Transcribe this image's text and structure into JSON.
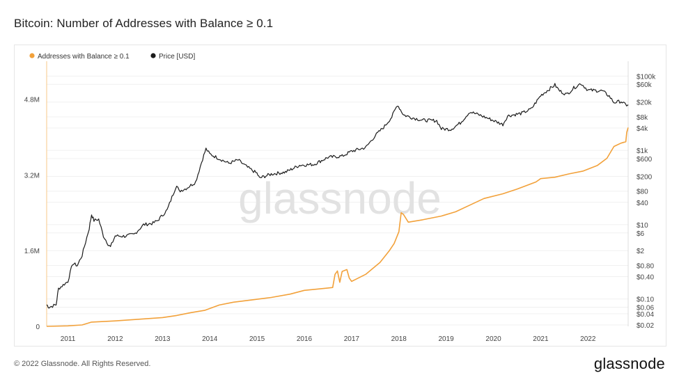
{
  "title": "Bitcoin: Number of Addresses with Balance ≥ 0.1",
  "footer": "© 2022 Glassnode. All Rights Reserved.",
  "brand": "glassnode",
  "watermark": "glassnode",
  "colors": {
    "addresses": "#f2a13a",
    "price": "#1b1b1b",
    "watermark": "#e2e2e2"
  },
  "chart_data": {
    "type": "line",
    "title": "Bitcoin: Number of Addresses with Balance ≥ 0.1",
    "legend_position": "top-left",
    "x": {
      "range": [
        2010.55,
        2022.85
      ],
      "tick_labels": [
        "2011",
        "2012",
        "2013",
        "2014",
        "2015",
        "2016",
        "2017",
        "2018",
        "2019",
        "2020",
        "2021",
        "2022"
      ]
    },
    "y_left": {
      "range": [
        0,
        5600000
      ],
      "ticks": [
        0,
        1600000,
        3200000,
        4800000
      ],
      "tick_labels": [
        "0",
        "1.6M",
        "3.2M",
        "4.8M"
      ]
    },
    "y_right": {
      "scale": "log",
      "range": [
        0.02,
        150000
      ],
      "ticks": [
        0.02,
        0.04,
        0.06,
        0.1,
        0.4,
        0.8,
        2,
        6,
        10,
        40,
        80,
        200,
        600,
        1000,
        4000,
        8000,
        20000,
        60000,
        100000
      ],
      "tick_labels": [
        "$0.02",
        "$0.04",
        "$0.06",
        "$0.10",
        "$0.40",
        "$0.80",
        "$2",
        "$6",
        "$10",
        "$40",
        "$80",
        "$200",
        "$600",
        "$1k",
        "$4k",
        "$8k",
        "$20k",
        "$60k",
        "$100k"
      ]
    },
    "series": [
      {
        "name": "Addresses with Balance ≥ 0.1",
        "axis": "left",
        "points": [
          [
            2010.55,
            0
          ],
          [
            2011.0,
            10000
          ],
          [
            2011.3,
            30000
          ],
          [
            2011.5,
            90000
          ],
          [
            2012.0,
            115000
          ],
          [
            2012.5,
            150000
          ],
          [
            2013.0,
            185000
          ],
          [
            2013.3,
            230000
          ],
          [
            2013.6,
            290000
          ],
          [
            2013.9,
            340000
          ],
          [
            2014.2,
            450000
          ],
          [
            2014.5,
            510000
          ],
          [
            2014.9,
            560000
          ],
          [
            2015.3,
            610000
          ],
          [
            2015.7,
            680000
          ],
          [
            2016.0,
            760000
          ],
          [
            2016.3,
            790000
          ],
          [
            2016.5,
            810000
          ],
          [
            2016.6,
            820000
          ],
          [
            2016.65,
            1100000
          ],
          [
            2016.7,
            1170000
          ],
          [
            2016.75,
            930000
          ],
          [
            2016.8,
            1160000
          ],
          [
            2016.9,
            1200000
          ],
          [
            2016.95,
            1020000
          ],
          [
            2017.0,
            950000
          ],
          [
            2017.3,
            1100000
          ],
          [
            2017.6,
            1350000
          ],
          [
            2017.8,
            1600000
          ],
          [
            2017.9,
            1750000
          ],
          [
            2018.0,
            2000000
          ],
          [
            2018.05,
            2400000
          ],
          [
            2018.1,
            2360000
          ],
          [
            2018.2,
            2200000
          ],
          [
            2018.5,
            2250000
          ],
          [
            2018.9,
            2330000
          ],
          [
            2019.2,
            2420000
          ],
          [
            2019.5,
            2560000
          ],
          [
            2019.8,
            2700000
          ],
          [
            2020.2,
            2800000
          ],
          [
            2020.5,
            2900000
          ],
          [
            2020.9,
            3050000
          ],
          [
            2021.0,
            3120000
          ],
          [
            2021.3,
            3150000
          ],
          [
            2021.6,
            3220000
          ],
          [
            2021.9,
            3280000
          ],
          [
            2022.2,
            3400000
          ],
          [
            2022.4,
            3550000
          ],
          [
            2022.55,
            3800000
          ],
          [
            2022.7,
            3870000
          ],
          [
            2022.8,
            3900000
          ],
          [
            2022.82,
            4100000
          ],
          [
            2022.85,
            4200000
          ]
        ]
      },
      {
        "name": "Price [USD]",
        "axis": "right",
        "points": [
          [
            2010.55,
            0.07
          ],
          [
            2010.6,
            0.06
          ],
          [
            2010.75,
            0.07
          ],
          [
            2010.8,
            0.19
          ],
          [
            2011.0,
            0.3
          ],
          [
            2011.1,
            0.9
          ],
          [
            2011.2,
            0.8
          ],
          [
            2011.3,
            1.5
          ],
          [
            2011.45,
            8
          ],
          [
            2011.5,
            19
          ],
          [
            2011.55,
            13
          ],
          [
            2011.65,
            14
          ],
          [
            2011.75,
            5
          ],
          [
            2011.85,
            3
          ],
          [
            2011.9,
            2.5
          ],
          [
            2012.0,
            5
          ],
          [
            2012.2,
            4.9
          ],
          [
            2012.4,
            5.5
          ],
          [
            2012.6,
            10
          ],
          [
            2012.8,
            11
          ],
          [
            2012.9,
            13
          ],
          [
            2013.1,
            25
          ],
          [
            2013.3,
            120
          ],
          [
            2013.35,
            80
          ],
          [
            2013.5,
            95
          ],
          [
            2013.7,
            140
          ],
          [
            2013.85,
            600
          ],
          [
            2013.92,
            1100
          ],
          [
            2014.0,
            800
          ],
          [
            2014.2,
            600
          ],
          [
            2014.4,
            450
          ],
          [
            2014.6,
            550
          ],
          [
            2014.8,
            350
          ],
          [
            2015.0,
            240
          ],
          [
            2015.05,
            180
          ],
          [
            2015.3,
            230
          ],
          [
            2015.6,
            260
          ],
          [
            2015.9,
            400
          ],
          [
            2016.2,
            420
          ],
          [
            2016.5,
            650
          ],
          [
            2016.8,
            700
          ],
          [
            2017.0,
            950
          ],
          [
            2017.3,
            1200
          ],
          [
            2017.5,
            2500
          ],
          [
            2017.7,
            4500
          ],
          [
            2017.85,
            8000
          ],
          [
            2017.97,
            17000
          ],
          [
            2018.1,
            9000
          ],
          [
            2018.3,
            7500
          ],
          [
            2018.5,
            6500
          ],
          [
            2018.8,
            6300
          ],
          [
            2018.9,
            3800
          ],
          [
            2019.1,
            3700
          ],
          [
            2019.3,
            5500
          ],
          [
            2019.5,
            11000
          ],
          [
            2019.7,
            9000
          ],
          [
            2019.9,
            7200
          ],
          [
            2020.2,
            5000
          ],
          [
            2020.3,
            8500
          ],
          [
            2020.6,
            10000
          ],
          [
            2020.8,
            13000
          ],
          [
            2021.0,
            30000
          ],
          [
            2021.3,
            58000
          ],
          [
            2021.4,
            40000
          ],
          [
            2021.55,
            32000
          ],
          [
            2021.7,
            48000
          ],
          [
            2021.85,
            64000
          ],
          [
            2022.0,
            42000
          ],
          [
            2022.3,
            40000
          ],
          [
            2022.45,
            29000
          ],
          [
            2022.55,
            19500
          ],
          [
            2022.7,
            21000
          ],
          [
            2022.8,
            16500
          ],
          [
            2022.85,
            17000
          ]
        ]
      }
    ]
  }
}
